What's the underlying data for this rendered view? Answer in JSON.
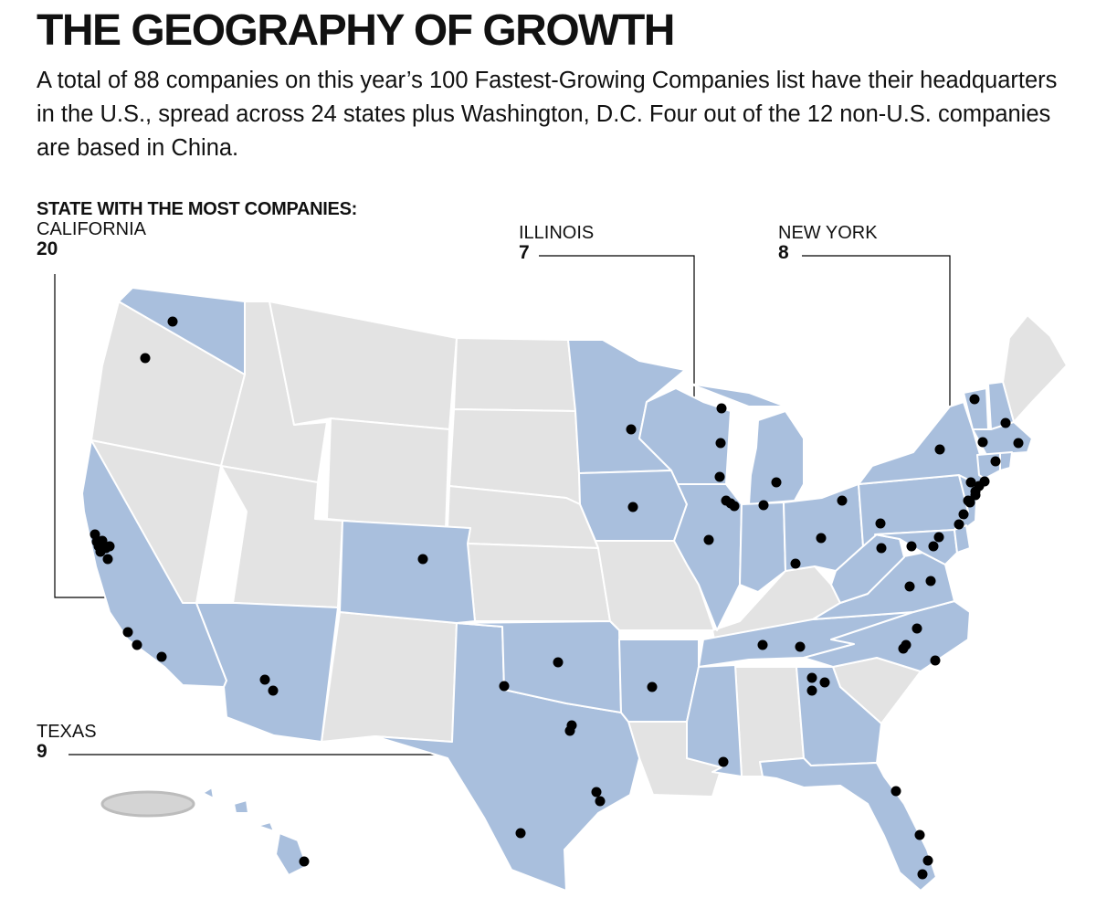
{
  "title": "THE GEOGRAPHY OF GROWTH",
  "deck": "A total of 88 companies on this year’s 100 Fastest-Growing Companies list have their headquarters in the U.S., spread across 24 states plus Washington, D.C. Four out of the 12 non-U.S. companies are based in China.",
  "callouts": {
    "most_heading": "STATE WITH THE MOST COMPANIES:",
    "california": {
      "name": "CALIFORNIA",
      "count": "20"
    },
    "illinois": {
      "name": "ILLINOIS",
      "count": "7"
    },
    "new_york": {
      "name": "NEW YORK",
      "count": "8"
    },
    "texas": {
      "name": "TEXAS",
      "count": "9"
    }
  },
  "colors": {
    "highlight_state": "#a9bfdd",
    "other_state": "#e3e3e3",
    "border": "#ffffff",
    "dot": "#000000",
    "leader_line": "#000000"
  },
  "legend_meaning": {
    "highlight_state": "state with at least one company on the list",
    "dot": "company headquarters"
  }
}
